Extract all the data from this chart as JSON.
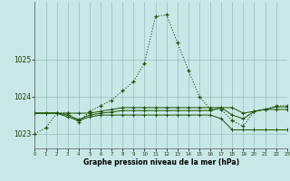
{
  "title": "Graphe pression niveau de la mer (hPa)",
  "bg_color": "#c8e8e8",
  "grid_color": "#99bbbb",
  "line_color": "#1a5200",
  "xlim": [
    0,
    23
  ],
  "ylim": [
    1022.6,
    1026.55
  ],
  "yticks": [
    1023,
    1024,
    1025
  ],
  "xticks": [
    0,
    1,
    2,
    3,
    4,
    5,
    6,
    7,
    8,
    9,
    10,
    11,
    12,
    13,
    14,
    15,
    16,
    17,
    18,
    19,
    20,
    21,
    22,
    23
  ],
  "s1": [
    1023.0,
    1023.15,
    1023.55,
    1023.55,
    1023.3,
    1023.6,
    1023.75,
    1023.9,
    1024.15,
    1024.4,
    1024.9,
    1026.15,
    1026.2,
    1025.45,
    1024.7,
    1024.0,
    1023.65,
    1023.65,
    1023.35,
    1023.2,
    1023.6,
    1023.65,
    1023.75,
    1023.75
  ],
  "s2": [
    1023.55,
    1023.55,
    1023.55,
    1023.55,
    1023.55,
    1023.55,
    1023.6,
    1023.65,
    1023.7,
    1023.7,
    1023.7,
    1023.7,
    1023.7,
    1023.7,
    1023.7,
    1023.7,
    1023.7,
    1023.7,
    1023.7,
    1023.55,
    1023.6,
    1023.65,
    1023.72,
    1023.72
  ],
  "s3": [
    1023.55,
    1023.55,
    1023.55,
    1023.45,
    1023.35,
    1023.45,
    1023.5,
    1023.5,
    1023.5,
    1023.5,
    1023.5,
    1023.5,
    1023.5,
    1023.5,
    1023.5,
    1023.5,
    1023.5,
    1023.4,
    1023.1,
    1023.1,
    1023.1,
    1023.1,
    1023.1,
    1023.1
  ],
  "s4": [
    1023.55,
    1023.55,
    1023.55,
    1023.5,
    1023.38,
    1023.5,
    1023.55,
    1023.58,
    1023.62,
    1023.62,
    1023.62,
    1023.62,
    1023.62,
    1023.62,
    1023.62,
    1023.62,
    1023.62,
    1023.7,
    1023.5,
    1023.4,
    1023.6,
    1023.65,
    1023.65,
    1023.65
  ]
}
